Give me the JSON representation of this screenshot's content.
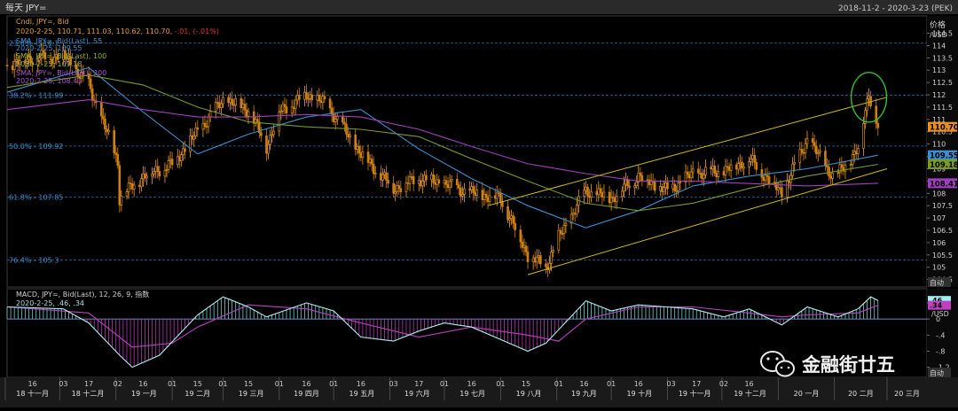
{
  "header": {
    "title": "每天 JPY=",
    "range": "2018-11-2 - 2020-3-23 (PEK)"
  },
  "colors": {
    "candle_up": "#f0a020",
    "candle_down": "#d08010",
    "sma55": "#3a8fd0",
    "sma100": "#7a9a20",
    "sma200": "#a040c0",
    "channel": "#d0c000",
    "fib": "#2a6a9a",
    "annotation_circle": "#30c030",
    "macd_line": "#b0f0f0",
    "macd_signal": "#c040c0"
  },
  "price_panel": {
    "legend": {
      "line1": "Cndl, JPY=, Bid",
      "line2_prefix": "2020-2-25, 110.71, 111.03, 110.62, 110.70, ",
      "line2_change": "-.01, (-.01%)",
      "sma55_name": "SMA, JPY=, Bid(Last), 55",
      "sma55_value": "2020-2-25, 109.55",
      "sma100_name": "SMA, JPY=, Bid(Last), 100",
      "sma100_value": "2020-2-25, 109.18",
      "sma200_name": "SMA, JPY=, Bid(Last), 200",
      "sma200_value": "2020-2-25, 108.41"
    },
    "axis_title_1": "价格",
    "axis_title_2": "/USD",
    "axis_footer": "自动",
    "fib_levels": [
      {
        "label": "23.6% - 114.1",
        "value": 114.1
      },
      {
        "label": "38.2% - 111.99",
        "value": 111.99
      },
      {
        "label": "50.0% - 109.92",
        "value": 109.92
      },
      {
        "label": "61.8% - 107.85",
        "value": 107.85
      },
      {
        "label": "76.4% - 105.3",
        "value": 105.3
      }
    ],
    "value_tags": [
      {
        "label": "110.70",
        "value": 110.7,
        "bg": "#e89020",
        "fg": "#000000"
      },
      {
        "label": "109.55",
        "value": 109.55,
        "bg": "#3a8fd0",
        "fg": "#000000"
      },
      {
        "label": "109.18",
        "value": 109.18,
        "bg": "#7a9a20",
        "fg": "#000000"
      },
      {
        "label": "108.41",
        "value": 108.41,
        "bg": "#a040c0",
        "fg": "#000000"
      }
    ]
  },
  "macd_panel": {
    "legend_1": "MACD, JPY=, Bid(Last), 12, 26, 9, 指数",
    "legend_2": "2020-2-25, .46, .34",
    "axis_unit": "/USD",
    "axis_footer": "自动",
    "ticks": [
      ".4",
      "0",
      "-.4",
      "-.8",
      "-1.2"
    ],
    "value_tags": [
      {
        "label": ".46",
        "bg": "#a0f0f0",
        "fg": "#000000"
      },
      {
        "label": ".34",
        "bg": "#c040c0",
        "fg": "#000000"
      }
    ]
  },
  "x_axis": {
    "day_ticks": [
      "16",
      "03",
      "17",
      "02",
      "16",
      "01",
      "15",
      "01",
      "15",
      "01",
      "16",
      "01",
      "16",
      "03",
      "17",
      "01",
      "16",
      "01",
      "15",
      "01",
      "16",
      "01",
      "16",
      "03",
      "17",
      "02",
      "16"
    ],
    "month_labels": [
      "18 十一月",
      "18 十二月",
      "19 一月",
      "19 二月",
      "19 三月",
      "19 四月",
      "19 五月",
      "19 六月",
      "19 七月",
      "19 八月",
      "19 九月",
      "19 十月",
      "19 十一月",
      "19 十二月",
      "20 一月",
      "20 二月",
      "20 三月"
    ]
  },
  "watermark": {
    "text": "金融街廿五",
    "icon": "wechat-icon"
  },
  "chart_data": [
    {
      "type": "candlestick",
      "title": "",
      "series_name": "JPY= Bid",
      "x_range": [
        "2018-11-02",
        "2020-03-23"
      ],
      "ylim": [
        104.2,
        115.2
      ],
      "y_ticks": [
        104.5,
        105,
        105.5,
        106,
        106.5,
        107,
        107.5,
        108,
        108.5,
        109,
        109.5,
        110,
        110.5,
        111,
        111.5,
        112,
        112.5,
        113,
        113.5,
        114,
        114.5
      ],
      "last_bar": {
        "date": "2020-2-25",
        "open": 110.71,
        "high": 111.03,
        "low": 110.62,
        "close": 110.7
      },
      "close_path": [
        {
          "x": "2018-11-02",
          "y": 113.2
        },
        {
          "x": "2018-11-16",
          "y": 113.5
        },
        {
          "x": "2018-12-03",
          "y": 113.6
        },
        {
          "x": "2018-12-17",
          "y": 112.4
        },
        {
          "x": "2019-01-02",
          "y": 109.3
        },
        {
          "x": "2019-01-03",
          "y": 107.8
        },
        {
          "x": "2019-01-16",
          "y": 108.7
        },
        {
          "x": "2019-02-01",
          "y": 109.2
        },
        {
          "x": "2019-02-15",
          "y": 110.5
        },
        {
          "x": "2019-03-01",
          "y": 111.8
        },
        {
          "x": "2019-03-15",
          "y": 111.4
        },
        {
          "x": "2019-03-25",
          "y": 109.9
        },
        {
          "x": "2019-04-01",
          "y": 111.3
        },
        {
          "x": "2019-04-16",
          "y": 112.0
        },
        {
          "x": "2019-04-25",
          "y": 111.7
        },
        {
          "x": "2019-05-01",
          "y": 111.2
        },
        {
          "x": "2019-05-16",
          "y": 109.6
        },
        {
          "x": "2019-06-03",
          "y": 108.2
        },
        {
          "x": "2019-06-17",
          "y": 108.6
        },
        {
          "x": "2019-07-01",
          "y": 108.4
        },
        {
          "x": "2019-07-16",
          "y": 108.0
        },
        {
          "x": "2019-08-01",
          "y": 107.8
        },
        {
          "x": "2019-08-16",
          "y": 105.5
        },
        {
          "x": "2019-08-26",
          "y": 105.0
        },
        {
          "x": "2019-09-02",
          "y": 106.2
        },
        {
          "x": "2019-09-17",
          "y": 108.1
        },
        {
          "x": "2019-10-01",
          "y": 107.8
        },
        {
          "x": "2019-10-16",
          "y": 108.7
        },
        {
          "x": "2019-11-01",
          "y": 108.1
        },
        {
          "x": "2019-11-15",
          "y": 108.8
        },
        {
          "x": "2019-12-02",
          "y": 108.9
        },
        {
          "x": "2019-12-16",
          "y": 109.4
        },
        {
          "x": "2020-01-03",
          "y": 108.0
        },
        {
          "x": "2020-01-17",
          "y": 110.2
        },
        {
          "x": "2020-02-01",
          "y": 108.6
        },
        {
          "x": "2020-02-14",
          "y": 109.8
        },
        {
          "x": "2020-02-20",
          "y": 112.1
        },
        {
          "x": "2020-02-25",
          "y": 110.7
        }
      ],
      "sma": [
        {
          "name": "SMA 55",
          "last": 109.55,
          "path": [
            {
              "x": "2018-11-02",
              "y": 112.1
            },
            {
              "x": "2018-12-17",
              "y": 113.1
            },
            {
              "x": "2019-01-16",
              "y": 111.3
            },
            {
              "x": "2019-02-15",
              "y": 109.6
            },
            {
              "x": "2019-03-15",
              "y": 110.4
            },
            {
              "x": "2019-04-16",
              "y": 111.1
            },
            {
              "x": "2019-05-16",
              "y": 111.4
            },
            {
              "x": "2019-06-17",
              "y": 109.8
            },
            {
              "x": "2019-07-16",
              "y": 108.6
            },
            {
              "x": "2019-08-16",
              "y": 107.5
            },
            {
              "x": "2019-09-17",
              "y": 106.6
            },
            {
              "x": "2019-10-16",
              "y": 107.3
            },
            {
              "x": "2019-11-15",
              "y": 108.3
            },
            {
              "x": "2019-12-16",
              "y": 108.7
            },
            {
              "x": "2020-01-17",
              "y": 109.0
            },
            {
              "x": "2020-02-25",
              "y": 109.55
            }
          ]
        },
        {
          "name": "SMA 100",
          "last": 109.18,
          "path": [
            {
              "x": "2018-11-02",
              "y": 112.3
            },
            {
              "x": "2018-12-17",
              "y": 112.8
            },
            {
              "x": "2019-01-16",
              "y": 112.4
            },
            {
              "x": "2019-02-15",
              "y": 111.5
            },
            {
              "x": "2019-03-15",
              "y": 110.9
            },
            {
              "x": "2019-04-16",
              "y": 110.7
            },
            {
              "x": "2019-05-16",
              "y": 110.6
            },
            {
              "x": "2019-06-17",
              "y": 110.3
            },
            {
              "x": "2019-07-16",
              "y": 109.4
            },
            {
              "x": "2019-08-16",
              "y": 108.5
            },
            {
              "x": "2019-09-17",
              "y": 107.6
            },
            {
              "x": "2019-10-16",
              "y": 107.3
            },
            {
              "x": "2019-11-15",
              "y": 107.6
            },
            {
              "x": "2019-12-16",
              "y": 108.2
            },
            {
              "x": "2020-01-17",
              "y": 108.7
            },
            {
              "x": "2020-02-25",
              "y": 109.18
            }
          ]
        },
        {
          "name": "SMA 200",
          "last": 108.41,
          "path": [
            {
              "x": "2018-11-02",
              "y": 111.4
            },
            {
              "x": "2018-12-17",
              "y": 111.8
            },
            {
              "x": "2019-01-16",
              "y": 111.4
            },
            {
              "x": "2019-02-15",
              "y": 111.1
            },
            {
              "x": "2019-03-15",
              "y": 111.1
            },
            {
              "x": "2019-04-16",
              "y": 111.2
            },
            {
              "x": "2019-05-16",
              "y": 111.1
            },
            {
              "x": "2019-06-17",
              "y": 110.6
            },
            {
              "x": "2019-07-16",
              "y": 109.9
            },
            {
              "x": "2019-08-16",
              "y": 109.2
            },
            {
              "x": "2019-09-17",
              "y": 108.8
            },
            {
              "x": "2019-10-16",
              "y": 108.5
            },
            {
              "x": "2019-11-15",
              "y": 108.5
            },
            {
              "x": "2019-12-16",
              "y": 108.4
            },
            {
              "x": "2020-01-17",
              "y": 108.3
            },
            {
              "x": "2020-02-25",
              "y": 108.41
            }
          ]
        }
      ],
      "channel_lines": [
        {
          "name": "upper",
          "from": {
            "x": "2019-07-25",
            "y": 107.5
          },
          "to": {
            "x": "2020-03-01",
            "y": 111.9
          }
        },
        {
          "name": "lower",
          "from": {
            "x": "2019-08-16",
            "y": 104.7
          },
          "to": {
            "x": "2020-03-01",
            "y": 109.0
          }
        }
      ],
      "annotation": {
        "shape": "ellipse",
        "x": "2020-02-20",
        "y": 111.9
      }
    },
    {
      "type": "line",
      "title": "",
      "ylim": [
        -1.45,
        0.75
      ],
      "y_ticks": [
        0.4,
        0,
        -0.4,
        -0.8,
        -1.2
      ],
      "last": {
        "date": "2020-2-25",
        "macd": 0.46,
        "signal": 0.34
      },
      "macd_path": [
        {
          "x": "2018-11-02",
          "y": 0.3
        },
        {
          "x": "2018-12-03",
          "y": 0.25
        },
        {
          "x": "2018-12-17",
          "y": -0.1
        },
        {
          "x": "2019-01-03",
          "y": -0.9
        },
        {
          "x": "2019-01-10",
          "y": -1.2
        },
        {
          "x": "2019-01-25",
          "y": -0.9
        },
        {
          "x": "2019-02-15",
          "y": 0.1
        },
        {
          "x": "2019-03-01",
          "y": 0.55
        },
        {
          "x": "2019-03-15",
          "y": 0.3
        },
        {
          "x": "2019-03-25",
          "y": 0.05
        },
        {
          "x": "2019-04-16",
          "y": 0.4
        },
        {
          "x": "2019-05-01",
          "y": 0.2
        },
        {
          "x": "2019-05-16",
          "y": -0.45
        },
        {
          "x": "2019-06-03",
          "y": -0.55
        },
        {
          "x": "2019-06-17",
          "y": -0.3
        },
        {
          "x": "2019-07-01",
          "y": -0.1
        },
        {
          "x": "2019-07-16",
          "y": -0.2
        },
        {
          "x": "2019-08-16",
          "y": -0.8
        },
        {
          "x": "2019-08-26",
          "y": -0.6
        },
        {
          "x": "2019-09-17",
          "y": 0.45
        },
        {
          "x": "2019-10-01",
          "y": 0.2
        },
        {
          "x": "2019-10-16",
          "y": 0.35
        },
        {
          "x": "2019-11-15",
          "y": 0.25
        },
        {
          "x": "2019-12-02",
          "y": 0.05
        },
        {
          "x": "2019-12-16",
          "y": 0.25
        },
        {
          "x": "2020-01-03",
          "y": -0.15
        },
        {
          "x": "2020-01-17",
          "y": 0.3
        },
        {
          "x": "2020-02-03",
          "y": 0.05
        },
        {
          "x": "2020-02-14",
          "y": 0.25
        },
        {
          "x": "2020-02-21",
          "y": 0.55
        },
        {
          "x": "2020-02-25",
          "y": 0.46
        }
      ],
      "signal_path": [
        {
          "x": "2018-11-02",
          "y": 0.3
        },
        {
          "x": "2018-12-17",
          "y": 0.15
        },
        {
          "x": "2019-01-10",
          "y": -0.7
        },
        {
          "x": "2019-02-01",
          "y": -0.6
        },
        {
          "x": "2019-02-15",
          "y": -0.2
        },
        {
          "x": "2019-03-15",
          "y": 0.35
        },
        {
          "x": "2019-04-16",
          "y": 0.25
        },
        {
          "x": "2019-05-16",
          "y": -0.1
        },
        {
          "x": "2019-06-17",
          "y": -0.45
        },
        {
          "x": "2019-07-16",
          "y": -0.2
        },
        {
          "x": "2019-08-16",
          "y": -0.4
        },
        {
          "x": "2019-09-02",
          "y": -0.55
        },
        {
          "x": "2019-09-17",
          "y": 0.0
        },
        {
          "x": "2019-10-16",
          "y": 0.3
        },
        {
          "x": "2019-11-15",
          "y": 0.3
        },
        {
          "x": "2019-12-16",
          "y": 0.15
        },
        {
          "x": "2020-01-03",
          "y": 0.05
        },
        {
          "x": "2020-01-17",
          "y": 0.1
        },
        {
          "x": "2020-02-14",
          "y": 0.15
        },
        {
          "x": "2020-02-25",
          "y": 0.34
        }
      ]
    }
  ]
}
